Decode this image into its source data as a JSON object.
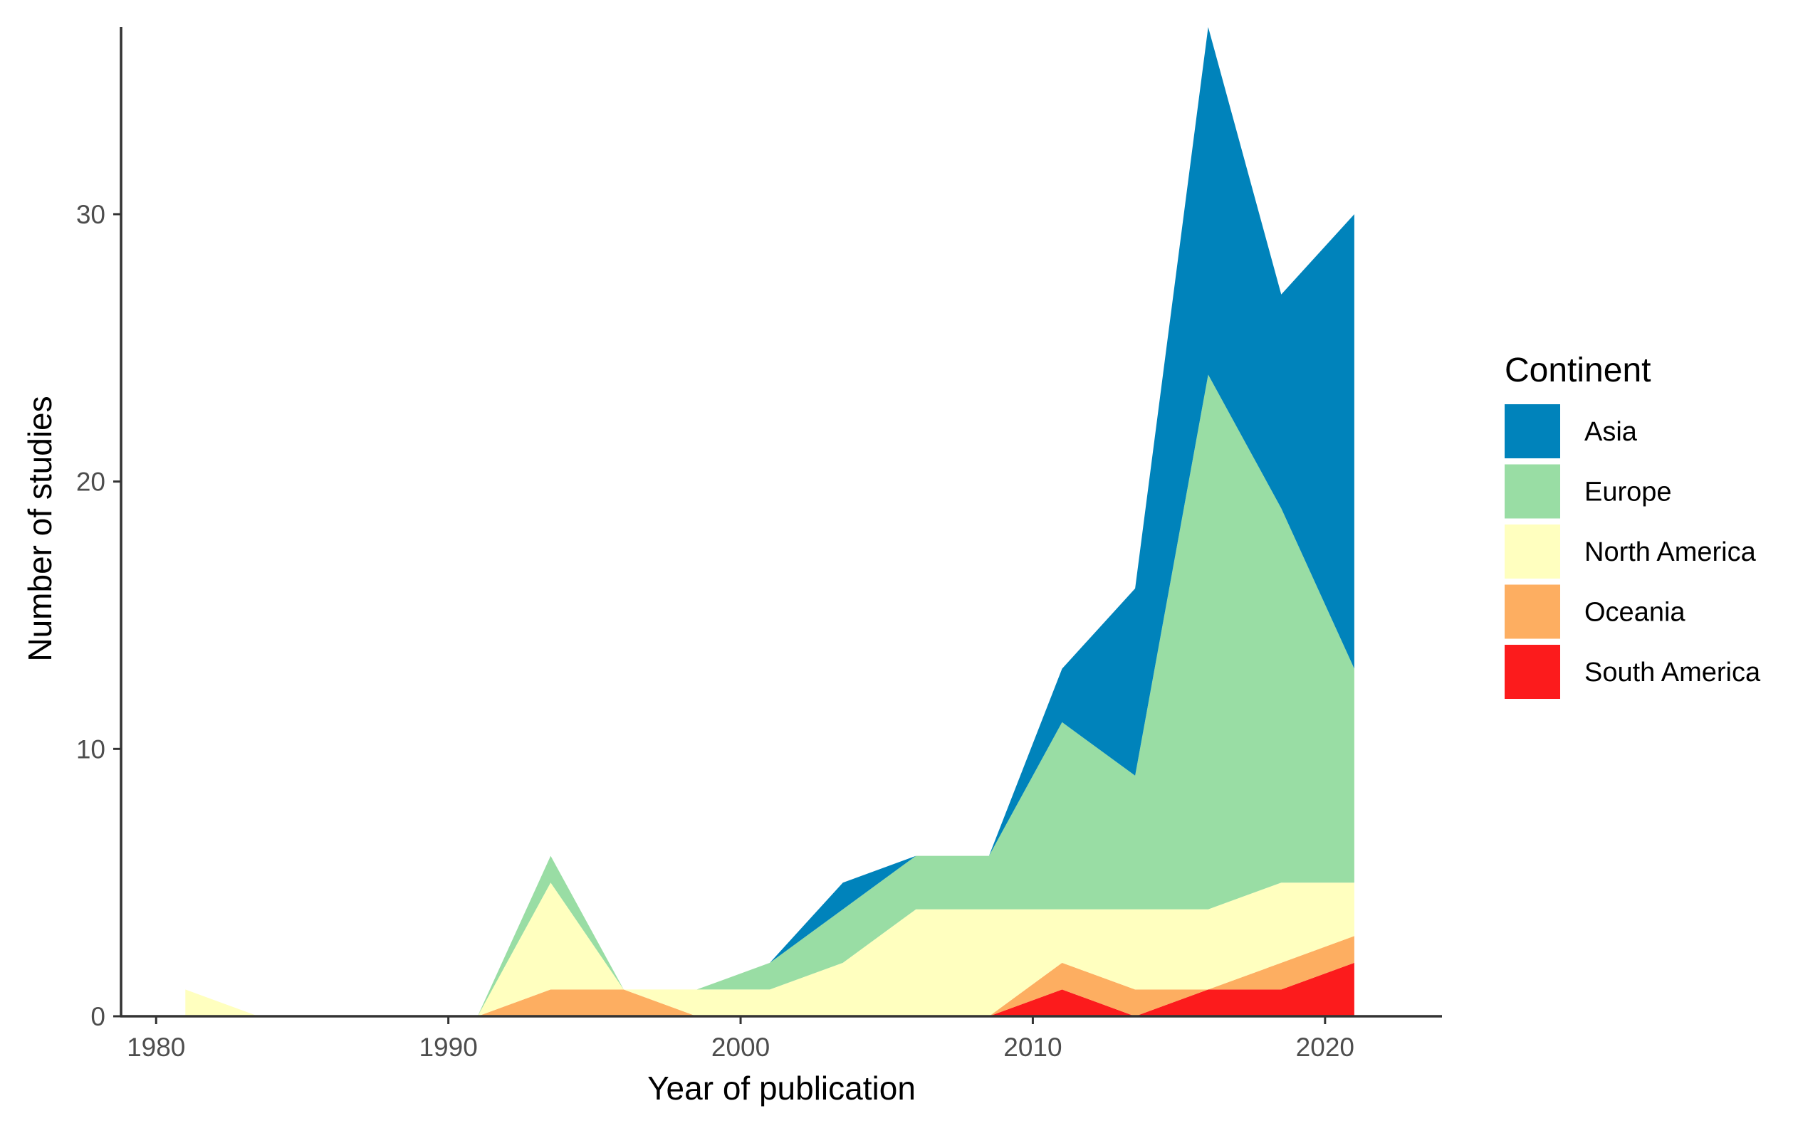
{
  "chart_data": {
    "type": "area",
    "stacked": true,
    "xlabel": "Year of publication",
    "ylabel": "Number of studies",
    "x": [
      1981,
      1983.5,
      1986,
      1988.5,
      1991,
      1993.5,
      1996,
      1998.5,
      2001,
      2003.5,
      2006,
      2008.5,
      2011,
      2013.5,
      2016,
      2018.5,
      2021
    ],
    "xlim": [
      1978.8,
      2024
    ],
    "ylim": [
      0,
      37
    ],
    "x_ticks": [
      1980,
      1990,
      2000,
      2010,
      2020
    ],
    "y_ticks": [
      0,
      10,
      20,
      30
    ],
    "grid": false,
    "legend_title": "Continent",
    "legend_position": "right",
    "series": [
      {
        "name": "South America",
        "color": "#fc1b1c",
        "values": [
          0,
          0,
          0,
          0,
          0,
          0,
          0,
          0,
          0,
          0,
          0,
          0,
          1,
          0,
          1,
          1,
          2
        ]
      },
      {
        "name": "Oceania",
        "color": "#fdae61",
        "values": [
          0,
          0,
          0,
          0,
          0,
          1,
          1,
          0,
          0,
          0,
          0,
          0,
          1,
          1,
          0,
          1,
          1
        ]
      },
      {
        "name": "North America",
        "color": "#ffffbf",
        "values": [
          1,
          0,
          0,
          0,
          0,
          4,
          0,
          1,
          1,
          2,
          4,
          4,
          2,
          3,
          3,
          3,
          2
        ]
      },
      {
        "name": "Europe",
        "color": "#99dda4",
        "values": [
          0,
          0,
          0,
          0,
          0,
          1,
          0,
          0,
          1,
          2,
          2,
          2,
          7,
          5,
          20,
          14,
          8
        ]
      },
      {
        "name": "Asia",
        "color": "#0083bb",
        "values": [
          0,
          0,
          0,
          0,
          0,
          0,
          0,
          0,
          0,
          1,
          0,
          0,
          2,
          7,
          13,
          8,
          17
        ]
      }
    ],
    "legend_order": [
      "Asia",
      "Europe",
      "North America",
      "Oceania",
      "South America"
    ]
  }
}
